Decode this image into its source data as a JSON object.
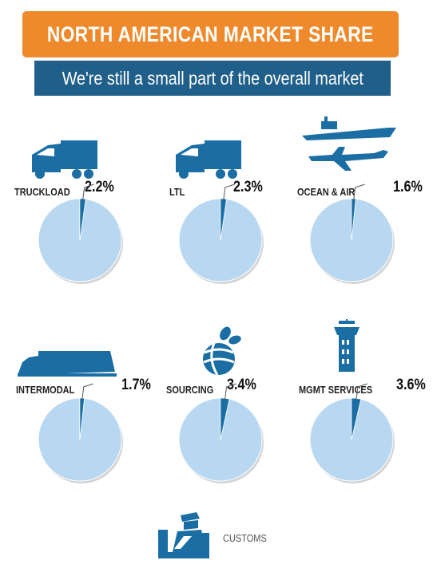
{
  "header": {
    "title": "NORTH AMERICAN MARKET SHARE",
    "subtitle": "We're still a small part of the overall market"
  },
  "colors": {
    "title_bg": "#ef8a2c",
    "subtitle_bg": "#1f5f8a",
    "pie_rest": "#b8d8f1",
    "pie_share": "#1b6ea3",
    "icon": "#1b6ea3"
  },
  "chart_data": [
    {
      "type": "pie",
      "title": "TRUCKLOAD",
      "value_label": "2.2%",
      "share": 2.2,
      "icon": "truck-icon"
    },
    {
      "type": "pie",
      "title": "LTL",
      "value_label": "2.3%",
      "share": 2.3,
      "icon": "truck-icon"
    },
    {
      "type": "pie",
      "title": "OCEAN & AIR",
      "value_label": "1.6%",
      "share": 1.6,
      "icon": "ship-and-plane-icon"
    },
    {
      "type": "pie",
      "title": "INTERMODAL",
      "value_label": "1.7%",
      "share": 1.7,
      "icon": "train-icon"
    },
    {
      "type": "pie",
      "title": "SOURCING",
      "value_label": "3.4%",
      "share": 3.4,
      "icon": "globe-icon"
    },
    {
      "type": "pie",
      "title": "MGMT SERVICES",
      "value_label": "3.6%",
      "share": 3.6,
      "icon": "control-tower-icon"
    }
  ],
  "footer": {
    "label": "CUSTOMS",
    "icon": "customs-officer-icon"
  }
}
